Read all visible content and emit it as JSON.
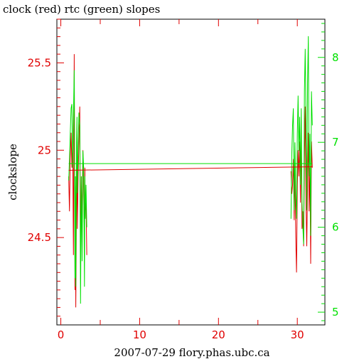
{
  "chart_data": {
    "type": "line",
    "title": "clock (red) rtc (green) slopes",
    "xlabel": "2007-07-29 flory.phas.ubc.ca",
    "ylabel": "clockslope",
    "xlim": [
      -0.5,
      33.5
    ],
    "ylim_left": [
      24.0,
      25.75
    ],
    "ylim_right": [
      4.85,
      8.45
    ],
    "xticks": [
      0,
      10,
      20,
      30
    ],
    "yticks_left": [
      24.5,
      25,
      25.5
    ],
    "yticks_left_labels": [
      "24.5",
      "25",
      "25.5"
    ],
    "yticks_right": [
      5,
      6,
      7,
      8
    ],
    "grid": false,
    "colors": {
      "clock": "#e00000",
      "rtc": "#00e000",
      "axes": "#000000"
    },
    "series": [
      {
        "name": "clock",
        "color": "#e00000",
        "axis": "left",
        "x": [
          1.0,
          1.1,
          1.2,
          1.3,
          1.4,
          1.5,
          1.6,
          1.7,
          1.8,
          1.85,
          1.9,
          2.0,
          2.05,
          2.1,
          2.2,
          2.3,
          2.4,
          2.5,
          2.6,
          2.7,
          2.8,
          2.9,
          3.0,
          3.05,
          3.1,
          3.2,
          3.3,
          29.2,
          29.3,
          29.4,
          29.5,
          29.6,
          29.7,
          29.8,
          29.9,
          30.0,
          30.1,
          30.2,
          30.3,
          30.4,
          30.5,
          30.6,
          30.7,
          30.8,
          30.9,
          31.0,
          31.1,
          31.2,
          31.3,
          31.4,
          31.5,
          31.6,
          31.7,
          31.8,
          31.9
        ],
        "y": [
          24.85,
          24.65,
          24.95,
          25.1,
          24.9,
          25.05,
          24.4,
          25.55,
          24.2,
          24.7,
          24.1,
          24.75,
          24.95,
          24.55,
          24.85,
          25.05,
          25.25,
          24.35,
          24.85,
          24.6,
          25.0,
          24.75,
          24.5,
          24.9,
          24.65,
          24.7,
          24.4,
          24.88,
          24.75,
          24.8,
          24.95,
          24.6,
          24.9,
          24.5,
          24.3,
          24.8,
          25.0,
          24.85,
          25.05,
          24.7,
          25.1,
          24.55,
          24.65,
          24.45,
          24.95,
          25.25,
          24.7,
          24.45,
          24.8,
          25.1,
          24.65,
          24.9,
          24.35,
          25.05,
          24.9
        ]
      },
      {
        "name": "rtc",
        "color": "#00e000",
        "axis": "right",
        "x": [
          1.0,
          1.1,
          1.2,
          1.3,
          1.4,
          1.5,
          1.6,
          1.7,
          1.8,
          1.85,
          1.9,
          2.0,
          2.05,
          2.1,
          2.2,
          2.3,
          2.4,
          2.5,
          2.6,
          2.7,
          2.8,
          2.9,
          3.0,
          3.05,
          3.1,
          3.2,
          3.3,
          29.2,
          29.3,
          29.4,
          29.5,
          29.6,
          29.7,
          29.8,
          29.9,
          30.0,
          30.1,
          30.2,
          30.3,
          30.4,
          30.5,
          30.6,
          30.7,
          30.8,
          30.9,
          31.0,
          31.1,
          31.2,
          31.3,
          31.4,
          31.5,
          31.6,
          31.7,
          31.8,
          31.9
        ],
        "y": [
          6.55,
          6.8,
          7.1,
          7.4,
          7.45,
          6.7,
          7.3,
          7.85,
          5.4,
          6.6,
          5.3,
          7.0,
          7.3,
          6.4,
          6.95,
          7.35,
          7.2,
          5.1,
          6.6,
          5.6,
          6.9,
          6.7,
          5.3,
          6.6,
          6.1,
          6.5,
          6.0,
          6.1,
          6.85,
          7.2,
          7.4,
          6.2,
          7.0,
          6.4,
          6.1,
          7.1,
          7.55,
          6.9,
          7.3,
          6.5,
          7.4,
          6.3,
          6.0,
          5.8,
          7.6,
          8.1,
          7.3,
          6.2,
          7.7,
          8.25,
          6.6,
          7.1,
          5.9,
          7.6,
          7.2
        ]
      },
      {
        "name": "clock-fit",
        "color": "#e00000",
        "axis": "left",
        "x": [
          1.0,
          31.9
        ],
        "y": [
          24.885,
          24.905
        ]
      },
      {
        "name": "rtc-fit",
        "color": "#00e000",
        "axis": "right",
        "x": [
          1.0,
          31.9
        ],
        "y": [
          6.75,
          6.75
        ]
      }
    ]
  }
}
